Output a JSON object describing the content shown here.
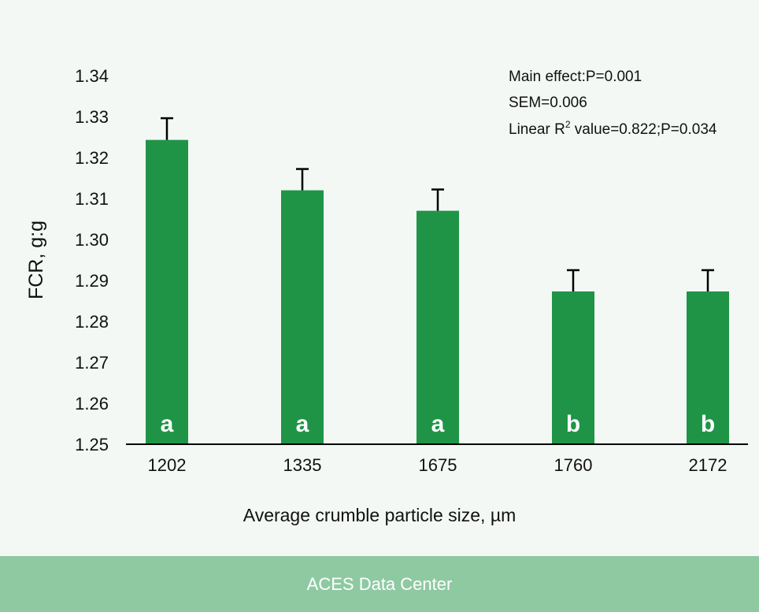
{
  "chart_data": {
    "type": "bar",
    "categories": [
      "1202",
      "1335",
      "1675",
      "1760",
      "2172"
    ],
    "values": [
      1.3243,
      1.312,
      1.307,
      1.2873,
      1.2873
    ],
    "error_upper": [
      1.3296,
      1.3172,
      1.3122,
      1.2925,
      1.2925
    ],
    "bar_labels": [
      "a",
      "a",
      "a",
      "b",
      "b"
    ],
    "xlabel": "Average crumble particle size, µm",
    "ylabel": "FCR, g:g",
    "ylim": [
      1.25,
      1.34
    ],
    "yticks": [
      1.34,
      1.33,
      1.32,
      1.31,
      1.3,
      1.29,
      1.28,
      1.27,
      1.26,
      1.25
    ],
    "ytick_labels": [
      "1.34",
      "1.33",
      "1.32",
      "1.31",
      "1.30",
      "1.29",
      "1.28",
      "1.27",
      "1.26",
      "1.25"
    ],
    "annotations": [
      "Main effect:P=0.001",
      "SEM=0.006"
    ],
    "annotation_linear": {
      "prefix": "Linear R",
      "superscript": "2",
      "suffix": " value=0.822;P=0.034"
    },
    "grid": false,
    "legend": "none"
  },
  "colors": {
    "bar": "#1f9447",
    "error_bar": "#000000",
    "axis": "#000000",
    "text": "#111111",
    "bar_label": "#ffffff",
    "background": "#f3f8f4",
    "footer": "#8fc9a2"
  },
  "footer": {
    "label": "ACES Data Center"
  }
}
